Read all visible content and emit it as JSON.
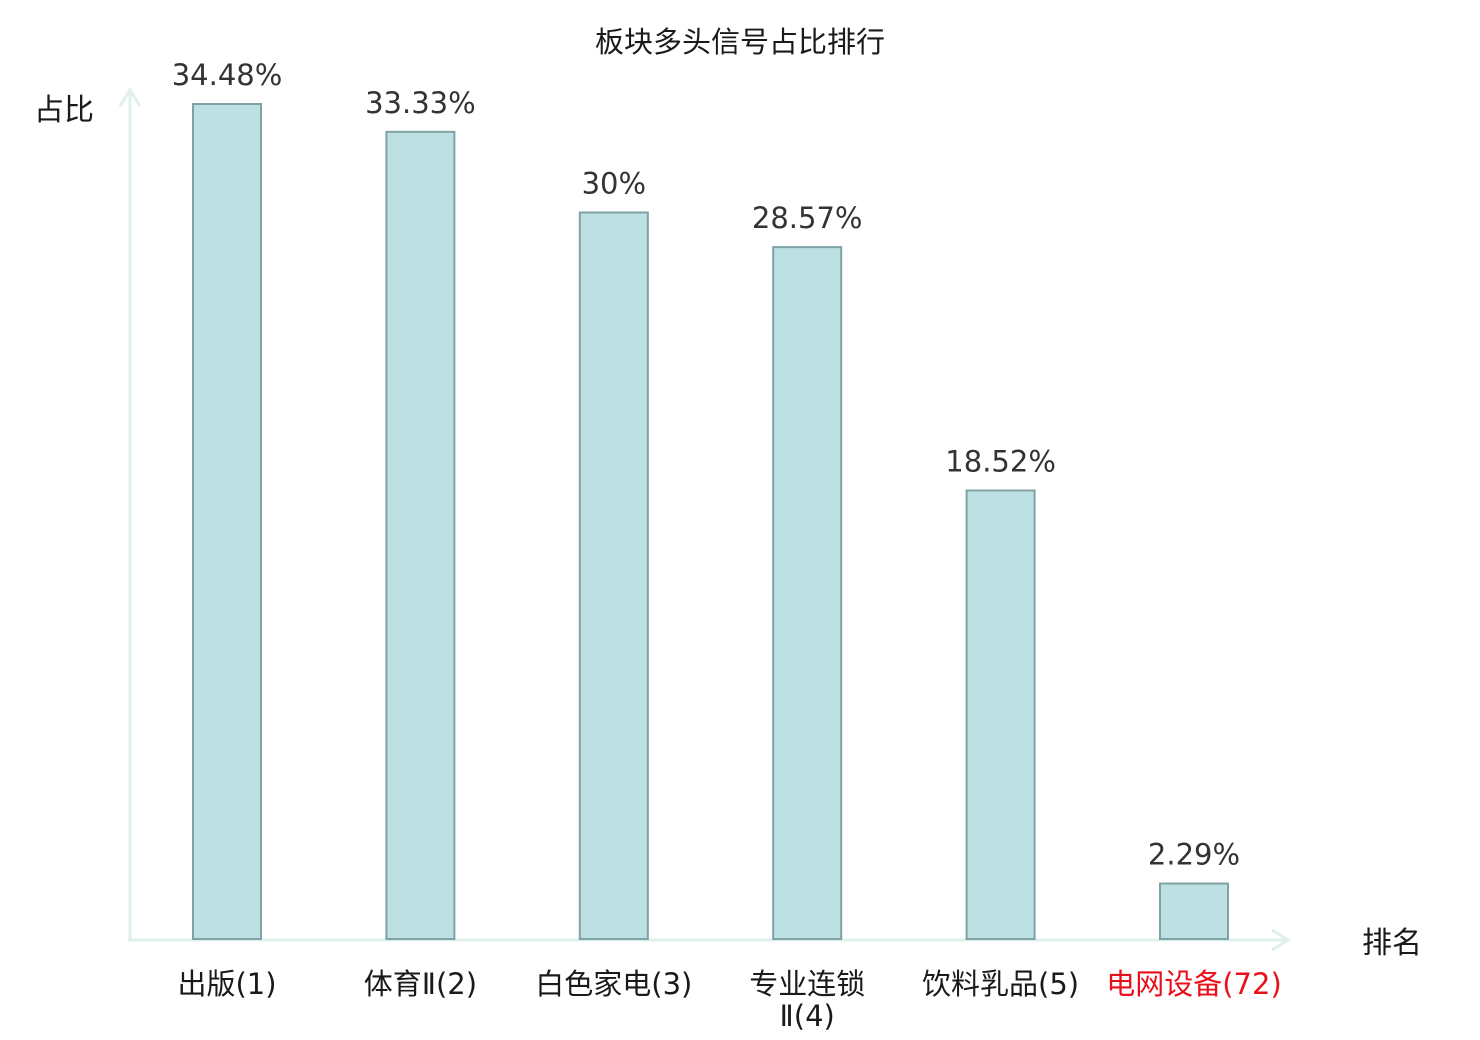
{
  "chart_data": {
    "type": "bar",
    "title": "板块多头信号占比排行",
    "xlabel": "排名",
    "ylabel": "占比",
    "categories": [
      {
        "name": "出版",
        "rank": "(1)",
        "highlight": false
      },
      {
        "name": "体育Ⅱ",
        "rank": "(2)",
        "highlight": false
      },
      {
        "name": "白色家电",
        "rank": "(3)",
        "highlight": false
      },
      {
        "name": "专业连锁",
        "name2": "Ⅱ(4)",
        "rank": "",
        "highlight": false
      },
      {
        "name": "饮料乳品",
        "rank": "(5)",
        "highlight": false
      },
      {
        "name": "电网设备",
        "rank": "(72)",
        "highlight": true
      }
    ],
    "values": [
      34.48,
      33.33,
      30,
      28.57,
      18.52,
      2.29
    ],
    "value_labels": [
      "34.48%",
      "33.33%",
      "30%",
      "28.57%",
      "18.52%",
      "2.29%"
    ],
    "ylim": [
      0,
      34.48
    ],
    "grid": false,
    "colors": {
      "bar_fill": "#bde0e3",
      "bar_stroke": "#7fa2a5",
      "axis": "#dff0ee",
      "highlight_text": "#e8101a"
    }
  }
}
